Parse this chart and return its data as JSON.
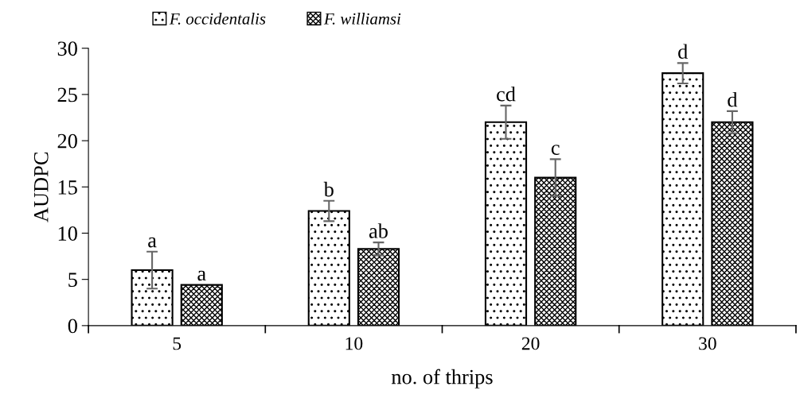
{
  "chart_data": {
    "type": "bar",
    "xlabel": "no. of thrips",
    "ylabel": "AUDPC",
    "categories": [
      "5",
      "10",
      "20",
      "30"
    ],
    "series": [
      {
        "name": "F. occidentalis",
        "color": "#000000",
        "values": [
          6.0,
          12.4,
          22.0,
          27.3
        ],
        "errors": [
          2.0,
          1.1,
          1.8,
          1.1
        ],
        "value_labels": [
          "a",
          "b",
          "cd",
          "d"
        ]
      },
      {
        "name": "F. williamsi",
        "color": "#000000",
        "values": [
          4.4,
          8.3,
          16.0,
          22.0
        ],
        "errors": [
          null,
          0.7,
          2.0,
          1.2
        ],
        "value_labels": [
          "a",
          "ab",
          "c",
          "d"
        ]
      }
    ],
    "ylim": [
      0,
      30
    ],
    "yticks": [
      0,
      5,
      10,
      15,
      20,
      25,
      30
    ],
    "grid": false,
    "legend": "top"
  }
}
